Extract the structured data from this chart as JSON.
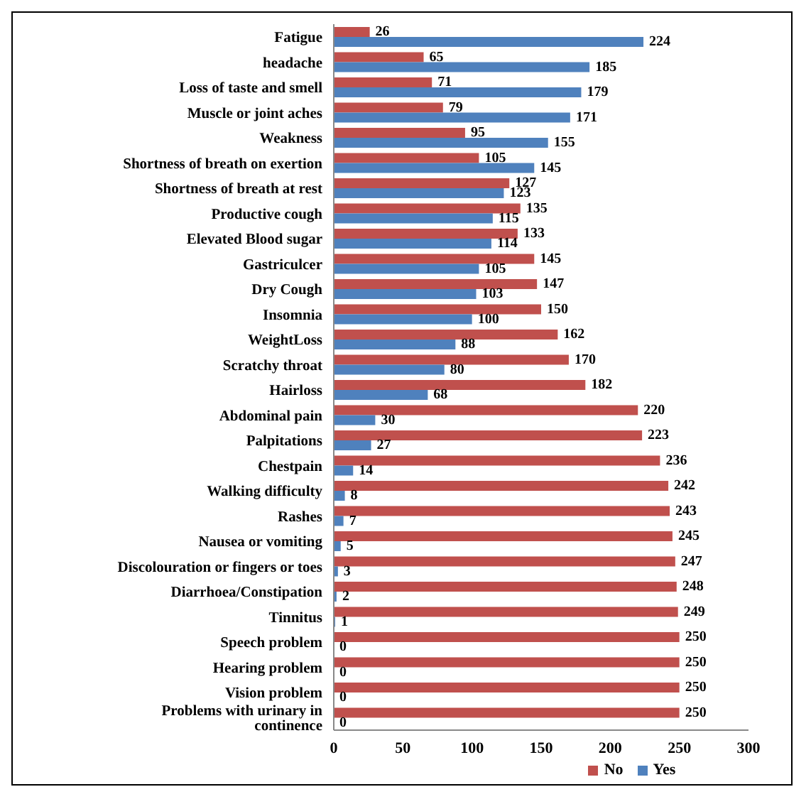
{
  "chart_data": {
    "type": "bar",
    "orientation": "horizontal",
    "categories": [
      "Fatigue",
      "headache",
      "Loss of taste and smell",
      "Muscle or joint aches",
      "Weakness",
      "Shortness of breath on exertion",
      "Shortness of breath at rest",
      "Productive cough",
      "Elevated Blood sugar",
      "Gastriculcer",
      "Dry Cough",
      "Insomnia",
      "WeightLoss",
      "Scratchy throat",
      "Hairloss",
      "Abdominal pain",
      "Palpitations",
      "Chestpain",
      "Walking difficulty",
      "Rashes",
      "Nausea or vomiting",
      "Discolouration or fingers or toes",
      "Diarrhoea/Constipation",
      "Tinnitus",
      "Speech problem",
      "Hearing problem",
      "Vision problem",
      "Problems with urinary in continence"
    ],
    "series": [
      {
        "name": "No",
        "color": "#c0504d",
        "values": [
          26,
          65,
          71,
          79,
          95,
          105,
          127,
          135,
          133,
          145,
          147,
          150,
          162,
          170,
          182,
          220,
          223,
          236,
          242,
          243,
          245,
          247,
          248,
          249,
          250,
          250,
          250,
          250
        ]
      },
      {
        "name": "Yes",
        "color": "#4f81bd",
        "values": [
          224,
          185,
          179,
          171,
          155,
          145,
          123,
          115,
          114,
          105,
          103,
          100,
          88,
          80,
          68,
          30,
          27,
          14,
          8,
          7,
          5,
          3,
          2,
          1,
          0,
          0,
          0,
          0
        ]
      }
    ],
    "xlim": [
      0,
      300
    ],
    "xticks": [
      0,
      50,
      100,
      150,
      200,
      250,
      300
    ],
    "data_labels": true,
    "grid": false,
    "legend": "bottom"
  }
}
